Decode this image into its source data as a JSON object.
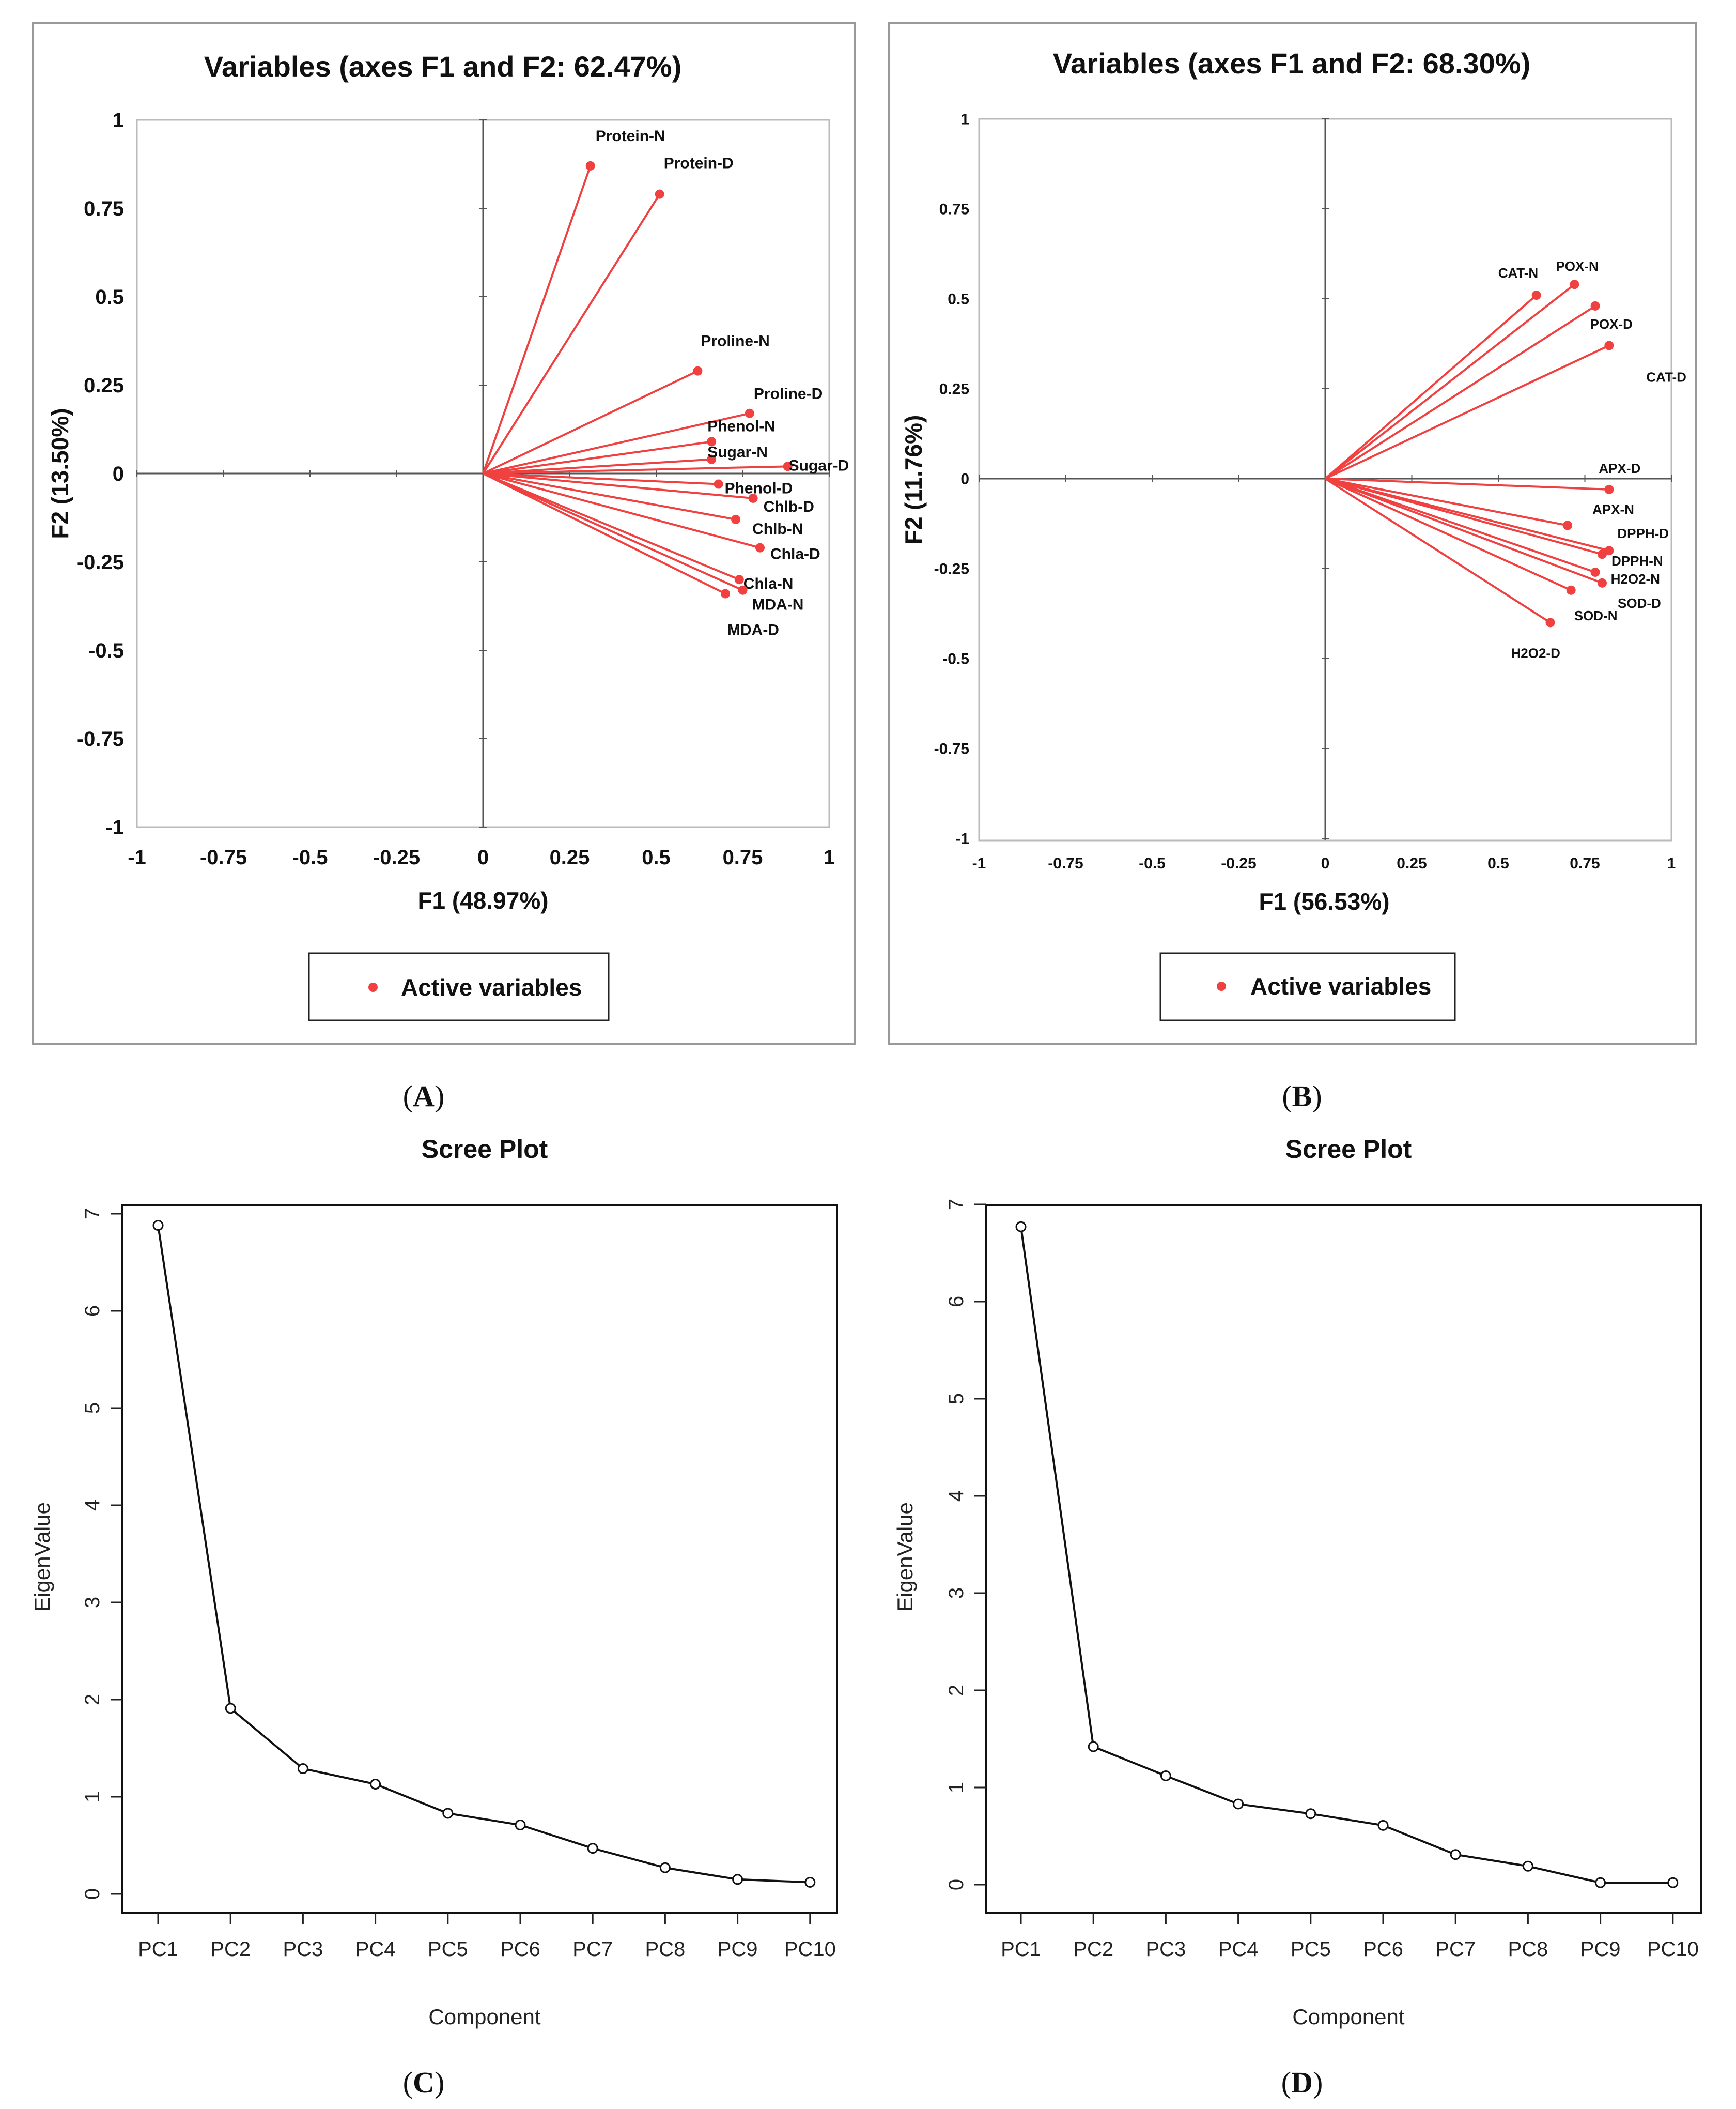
{
  "panels": {
    "A": {
      "caption_open": "(",
      "letter": "A",
      "caption_close": ")"
    },
    "B": {
      "caption_open": "(",
      "letter": "B",
      "caption_close": ")"
    },
    "C": {
      "caption_open": "(",
      "letter": "C",
      "caption_close": ")"
    },
    "D": {
      "caption_open": "(",
      "letter": "D",
      "caption_close": ")"
    }
  },
  "colors": {
    "vector": "#f04040",
    "axis": "#555555",
    "frame": "#999999",
    "line": "#111111"
  },
  "chart_data": [
    {
      "type": "scatter",
      "subtype": "pca-correlation-circle",
      "title": "Variables (axes F1 and F2: 62.47%)",
      "xlabel": "F1 (48.97%)",
      "ylabel": "F2 (13.50%)",
      "xlim": [
        -1,
        1
      ],
      "ylim": [
        -1,
        1
      ],
      "xticks": [
        "-1",
        "-0.75",
        "-0.5",
        "-0.25",
        "0",
        "0.25",
        "0.5",
        "0.75",
        "1"
      ],
      "yticks": [
        "1",
        "0.75",
        "0.5",
        "0.25",
        "0",
        "-0.25",
        "-0.5",
        "-0.75",
        "-1"
      ],
      "legend": "Active variables",
      "legend_position": "bottom",
      "points": [
        {
          "label": "Protein-N",
          "x": 0.31,
          "y": 0.87
        },
        {
          "label": "Protein-D",
          "x": 0.51,
          "y": 0.79
        },
        {
          "label": "Proline-N",
          "x": 0.62,
          "y": 0.29
        },
        {
          "label": "Proline-D",
          "x": 0.77,
          "y": 0.17
        },
        {
          "label": "Phenol-N",
          "x": 0.66,
          "y": 0.09
        },
        {
          "label": "Sugar-N",
          "x": 0.66,
          "y": 0.04
        },
        {
          "label": "Sugar-D",
          "x": 0.88,
          "y": 0.02
        },
        {
          "label": "Phenol-D",
          "x": 0.68,
          "y": -0.03
        },
        {
          "label": "Chlb-D",
          "x": 0.78,
          "y": -0.07
        },
        {
          "label": "Chlb-N",
          "x": 0.73,
          "y": -0.13
        },
        {
          "label": "Chla-D",
          "x": 0.8,
          "y": -0.21
        },
        {
          "label": "Chla-N",
          "x": 0.74,
          "y": -0.3
        },
        {
          "label": "MDA-N",
          "x": 0.75,
          "y": -0.33
        },
        {
          "label": "MDA-D",
          "x": 0.7,
          "y": -0.34
        }
      ]
    },
    {
      "type": "scatter",
      "subtype": "pca-correlation-circle",
      "title": "Variables (axes F1 and F2: 68.30%)",
      "xlabel": "F1 (56.53%)",
      "ylabel": "F2 (11.76%)",
      "xlim": [
        -1,
        1
      ],
      "ylim": [
        -1,
        1
      ],
      "xticks": [
        "-1",
        "-0.75",
        "-0.5",
        "-0.25",
        "0",
        "0.25",
        "0.5",
        "0.75",
        "1"
      ],
      "yticks": [
        "1",
        "0.75",
        "0.5",
        "0.25",
        "0",
        "-0.25",
        "-0.5",
        "-0.75",
        "-1"
      ],
      "legend": "Active variables",
      "legend_position": "bottom",
      "points": [
        {
          "label": "CAT-N",
          "x": 0.61,
          "y": 0.51
        },
        {
          "label": "POX-N",
          "x": 0.72,
          "y": 0.54
        },
        {
          "label": "POX-D",
          "x": 0.78,
          "y": 0.48
        },
        {
          "label": "CAT-D",
          "x": 0.82,
          "y": 0.37
        },
        {
          "label": "APX-D",
          "x": 0.82,
          "y": -0.03
        },
        {
          "label": "APX-N",
          "x": 0.7,
          "y": -0.13
        },
        {
          "label": "DPPH-D",
          "x": 0.82,
          "y": -0.2
        },
        {
          "label": "DPPH-N",
          "x": 0.8,
          "y": -0.21
        },
        {
          "label": "H2O2-N",
          "x": 0.78,
          "y": -0.26
        },
        {
          "label": "SOD-D",
          "x": 0.8,
          "y": -0.29
        },
        {
          "label": "SOD-N",
          "x": 0.71,
          "y": -0.31
        },
        {
          "label": "H2O2-D",
          "x": 0.65,
          "y": -0.4
        }
      ]
    },
    {
      "type": "line",
      "title": "Scree Plot",
      "xlabel": "Component",
      "ylabel": "EigenValue",
      "ylim": [
        0,
        7
      ],
      "yticks": [
        "0",
        "1",
        "2",
        "3",
        "4",
        "5",
        "6",
        "7"
      ],
      "categories": [
        "PC1",
        "PC2",
        "PC3",
        "PC4",
        "PC5",
        "PC6",
        "PC7",
        "PC8",
        "PC9",
        "PC10"
      ],
      "values": [
        6.88,
        1.91,
        1.29,
        1.13,
        0.83,
        0.71,
        0.47,
        0.27,
        0.15,
        0.12
      ]
    },
    {
      "type": "line",
      "title": "Scree Plot",
      "xlabel": "Component",
      "ylabel": "EigenValue",
      "ylim": [
        0,
        7
      ],
      "yticks": [
        "0",
        "1",
        "2",
        "3",
        "4",
        "5",
        "6",
        "7"
      ],
      "categories": [
        "PC1",
        "PC2",
        "PC3",
        "PC4",
        "PC5",
        "PC6",
        "PC7",
        "PC8",
        "PC9",
        "PC10"
      ],
      "values": [
        6.77,
        1.42,
        1.12,
        0.83,
        0.73,
        0.61,
        0.31,
        0.19,
        0.02,
        0.02
      ]
    }
  ]
}
